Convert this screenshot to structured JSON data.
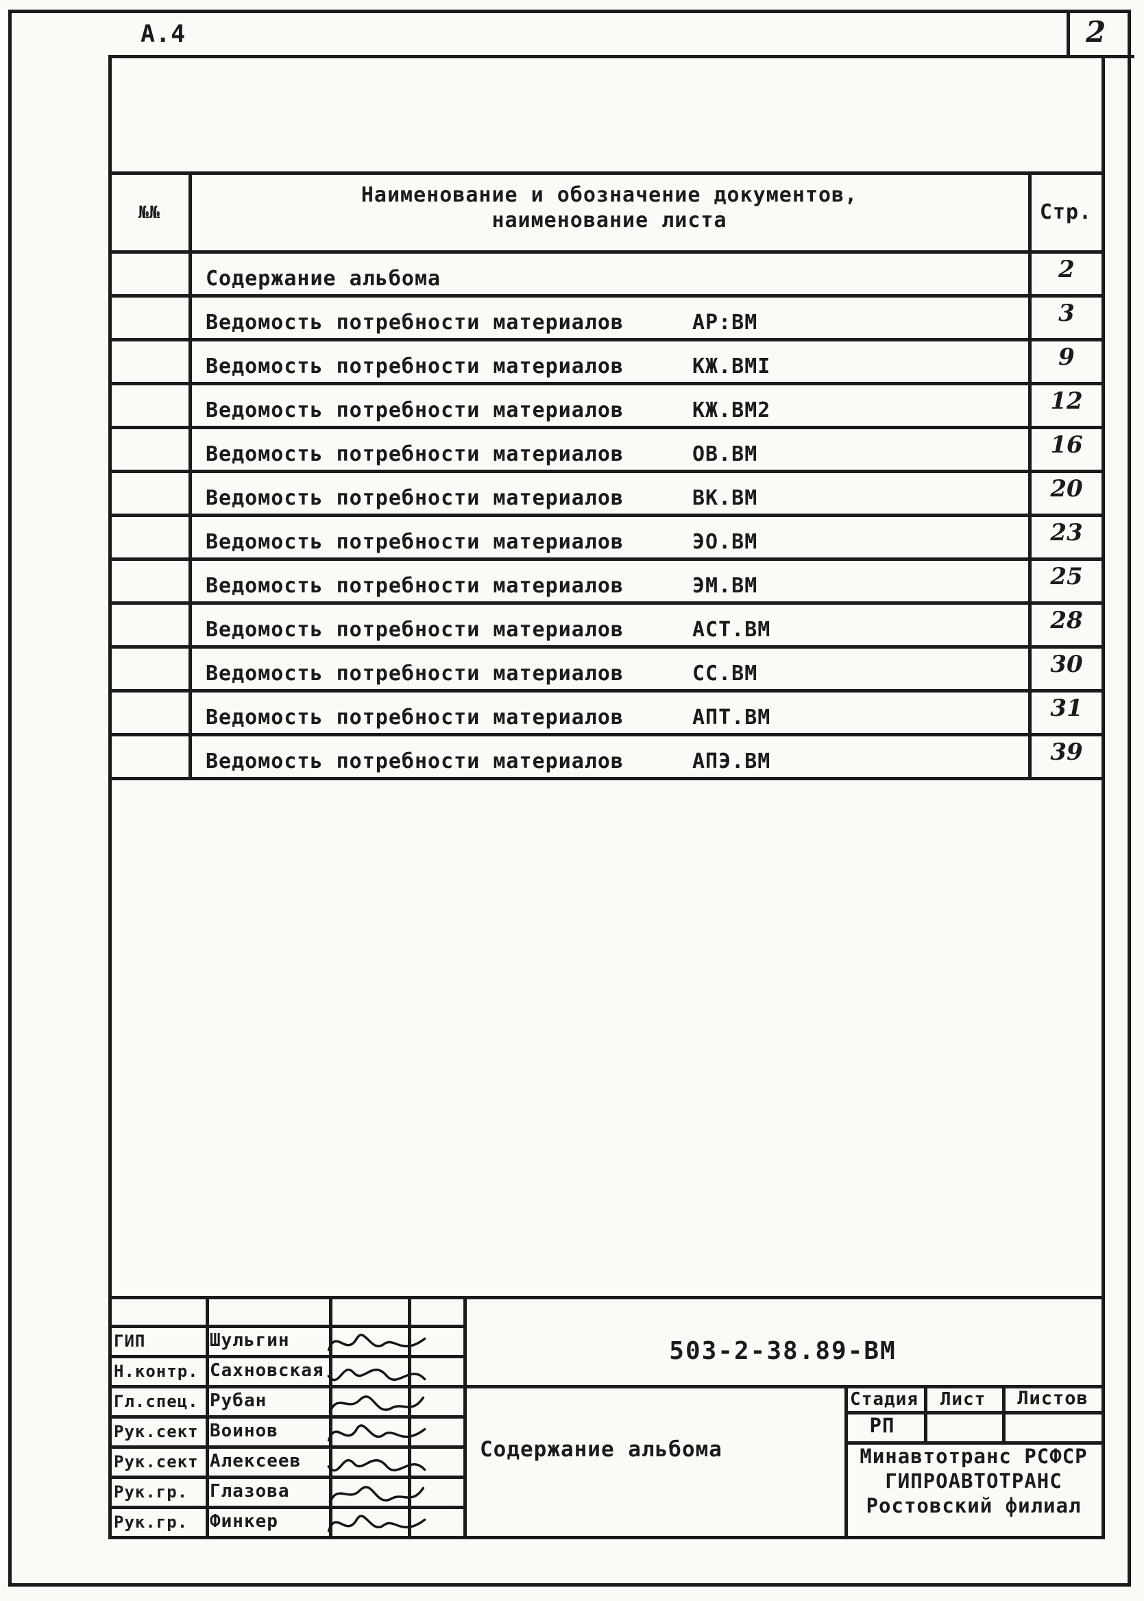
{
  "page": {
    "corner_code": "А.4",
    "sheet_number": "2"
  },
  "contents_table": {
    "col_num": "№№",
    "col_name_line1": "Наименование и обозначение документов,",
    "col_name_line2": "наименование листа",
    "col_page": "Стр.",
    "rows": [
      {
        "name": "Содержание альбома",
        "code": "",
        "page": "2"
      },
      {
        "name": "Ведомость потребности материалов",
        "code": "АР:ВМ",
        "page": "3"
      },
      {
        "name": "Ведомость потребности материалов",
        "code": "КЖ.ВМI",
        "page": "9"
      },
      {
        "name": "Ведомость потребности материалов",
        "code": "КЖ.ВМ2",
        "page": "12"
      },
      {
        "name": "Ведомость потребности материалов",
        "code": "ОВ.ВМ",
        "page": "16"
      },
      {
        "name": "Ведомость потребности материалов",
        "code": "ВК.ВМ",
        "page": "20"
      },
      {
        "name": "Ведомость потребности материалов",
        "code": "ЭО.ВМ",
        "page": "23"
      },
      {
        "name": "Ведомость потребности материалов",
        "code": "ЭМ.ВМ",
        "page": "25"
      },
      {
        "name": "Ведомость потребности материалов",
        "code": "АСТ.ВМ",
        "page": "28"
      },
      {
        "name": "Ведомость потребности материалов",
        "code": "СС.ВМ",
        "page": "30"
      },
      {
        "name": "Ведомость потребности материалов",
        "code": "АПТ.ВМ",
        "page": "31"
      },
      {
        "name": "Ведомость потребности материалов",
        "code": "АПЭ.ВМ",
        "page": "39"
      }
    ]
  },
  "title_block": {
    "doc_number": "503-2-38.89-ВМ",
    "doc_title": "Содержание альбома",
    "col_stage": "Стадия",
    "col_sheet": "Лист",
    "col_sheets": "Листов",
    "stage": "РП",
    "org_line1": "Минавтотранс РСФСР",
    "org_line2": "ГИПРОАВТОТРАНС",
    "org_line3": "Ростовский филиал",
    "signatories": [
      {
        "role": "ГИП",
        "name": "Шульгин"
      },
      {
        "role": "Н.контр.",
        "name": "Сахновская"
      },
      {
        "role": "Гл.спец.",
        "name": "Рубан"
      },
      {
        "role": "Рук.сект",
        "name": "Воинов"
      },
      {
        "role": "Рук.сект",
        "name": "Алексеев"
      },
      {
        "role": "Рук.гр.",
        "name": "Глазова"
      },
      {
        "role": "Рук.гр.",
        "name": "Финкер"
      }
    ]
  }
}
